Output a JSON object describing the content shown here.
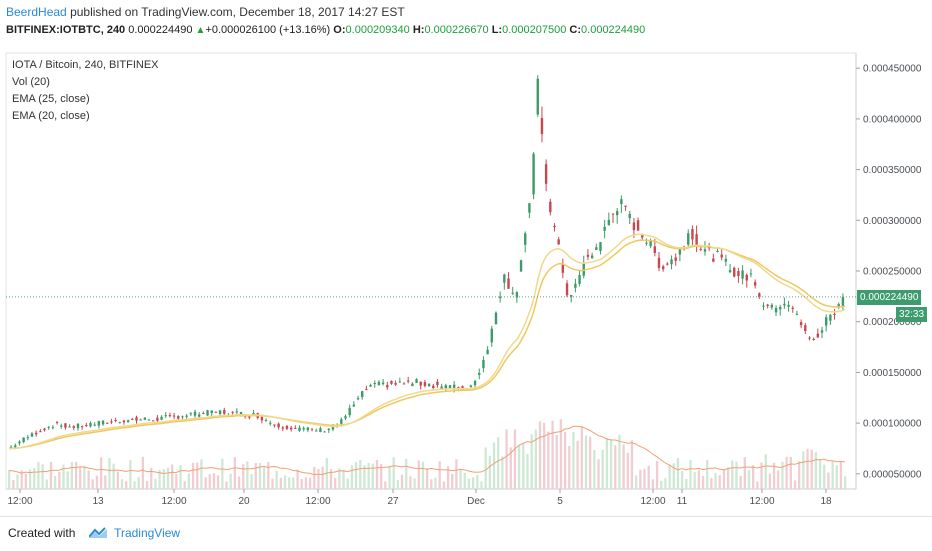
{
  "header": {
    "author": "BeerdHead",
    "published": "published on TradingView.com, December 18, 2017 14:27 EST",
    "symbol": "BITFINEX:IOTBTC, 240",
    "last": "0.000224490",
    "arrow": "▲",
    "change": "+0.000026100 (+13.16%)",
    "o_label": "O:",
    "o_value": "0.000209340",
    "h_label": "H:",
    "h_value": "0.000226670",
    "l_label": "L:",
    "l_value": "0.000207500",
    "c_label": "C:",
    "c_value": "0.000224490"
  },
  "legend": {
    "line1": "IOTA / Bitcoin, 240, BITFINEX",
    "line2": "Vol (20)",
    "line3": "EMA (25, close)",
    "line4": "EMA (20, close)"
  },
  "badges": {
    "last_price": "0.000224490",
    "countdown": "32:33"
  },
  "footer": {
    "created_with": "Created with",
    "brand": "TradingView",
    "brand_icon": "tradingview-logo-icon"
  },
  "colors": {
    "up": "#3d9b6a",
    "down": "#c9464f",
    "ema25": "#f1c760",
    "ema20": "#f0d98c",
    "vol_ma": "#f0a074",
    "vol_up": "#cfe8d4",
    "vol_down": "#f1cdd2",
    "price_line": "#5aa394",
    "badge_green": "#3e9b6f"
  },
  "chart_data": {
    "type": "candlestick",
    "title": "IOTA / Bitcoin, 240, BITFINEX",
    "ylim": [
      3.5e-05,
      0.000465
    ],
    "y_ticks": [
      5e-05,
      0.0001,
      0.00015,
      0.0002,
      0.00025,
      0.0003,
      0.00035,
      0.0004,
      0.00045
    ],
    "y_tick_labels": [
      "0.000050000",
      "0.000100000",
      "0.000150000",
      "0.000200000",
      "0.000250000",
      "0.000300000",
      "0.000350000",
      "0.000400000",
      "0.000450000"
    ],
    "x_tick_labels": [
      "12:00",
      "13",
      "12:00",
      "20",
      "12:00",
      "27",
      "Dec",
      "5",
      "12:00",
      "11",
      "12:00",
      "18"
    ],
    "last_price": 0.00022449,
    "close_path": [
      [
        0,
        7.5e-05
      ],
      [
        6,
        8.3e-05
      ],
      [
        14,
        9.2e-05
      ],
      [
        22,
        9.9e-05
      ],
      [
        30,
        9.6e-05
      ],
      [
        40,
        9.9e-05
      ],
      [
        55,
        0.000103
      ],
      [
        70,
        0.000104
      ],
      [
        85,
        0.000108
      ],
      [
        100,
        0.000111
      ],
      [
        118,
        0.000108
      ],
      [
        128,
        9.8e-05
      ],
      [
        140,
        9.4e-05
      ],
      [
        150,
        9.3e-05
      ],
      [
        158,
        9.9e-05
      ],
      [
        166,
        0.000121
      ],
      [
        172,
        0.000136
      ],
      [
        180,
        0.000138
      ],
      [
        195,
        0.00014
      ],
      [
        210,
        0.000136
      ],
      [
        220,
        0.000133
      ],
      [
        226,
        0.000155
      ],
      [
        232,
        0.000198
      ],
      [
        237,
        0.00025
      ],
      [
        242,
        0.00022
      ],
      [
        246,
        0.000278
      ],
      [
        250,
        0.00033
      ],
      [
        253,
        0.00043
      ],
      [
        256,
        0.00035
      ],
      [
        260,
        0.0003
      ],
      [
        264,
        0.00026
      ],
      [
        268,
        0.00022
      ],
      [
        272,
        0.00024
      ],
      [
        276,
        0.00026
      ],
      [
        282,
        0.000275
      ],
      [
        288,
        0.000305
      ],
      [
        292,
        0.000318
      ],
      [
        296,
        0.000303
      ],
      [
        302,
        0.00029
      ],
      [
        308,
        0.00027
      ],
      [
        312,
        0.000255
      ],
      [
        316,
        0.00026
      ],
      [
        320,
        0.000265
      ],
      [
        326,
        0.000292
      ],
      [
        332,
        0.00027
      ],
      [
        338,
        0.000265
      ],
      [
        344,
        0.000255
      ],
      [
        350,
        0.000245
      ],
      [
        356,
        0.000245
      ],
      [
        360,
        0.00022
      ],
      [
        365,
        0.000212
      ],
      [
        370,
        0.00022
      ],
      [
        374,
        0.000218
      ],
      [
        378,
        0.0002
      ],
      [
        383,
        0.000182
      ],
      [
        388,
        0.000188
      ],
      [
        392,
        0.000205
      ],
      [
        396,
        0.000212
      ],
      [
        400,
        0.000225
      ]
    ],
    "volume_ylim": [
      0,
      0.000165
    ],
    "volume_note": "volume plotted on overlay scale; no printed volume axis"
  }
}
